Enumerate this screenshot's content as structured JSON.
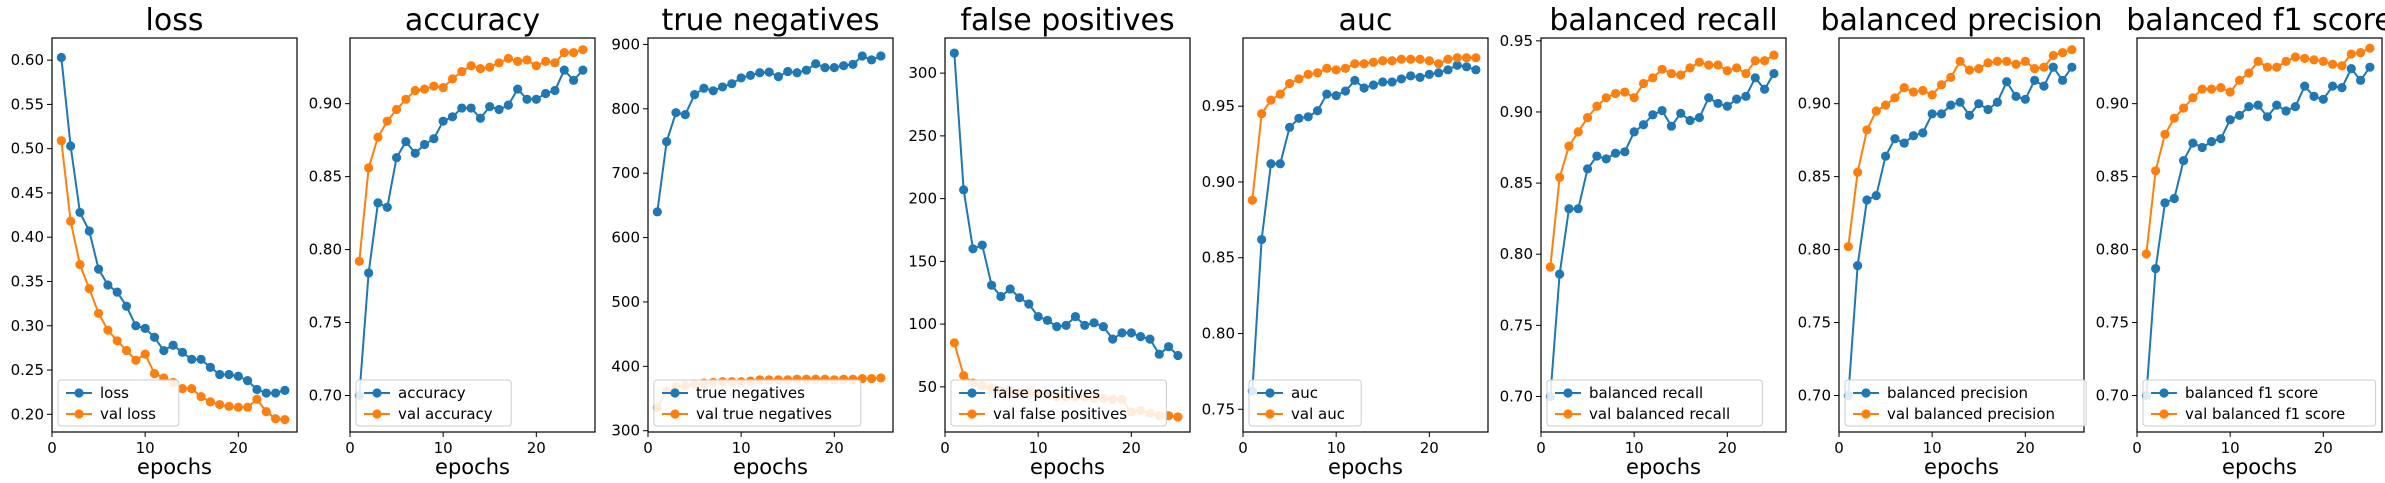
{
  "chart_data": [
    {
      "type": "line",
      "title": "loss",
      "xlabel": "epochs",
      "xlim": [
        0,
        26.3
      ],
      "ylim": [
        0.18,
        0.625
      ],
      "xticks": [
        0,
        10,
        20
      ],
      "yticks": [
        0.2,
        0.25,
        0.3,
        0.35,
        0.4,
        0.45,
        0.5,
        0.55,
        0.6
      ],
      "ytick_labels": [
        "0.20",
        "0.25",
        "0.30",
        "0.35",
        "0.40",
        "0.45",
        "0.50",
        "0.55",
        "0.60"
      ],
      "legend_position": "lower-left",
      "x": [
        1,
        2,
        3,
        4,
        5,
        6,
        7,
        8,
        9,
        10,
        11,
        12,
        13,
        14,
        15,
        16,
        17,
        18,
        19,
        20,
        21,
        22,
        23,
        24,
        25
      ],
      "series": [
        {
          "name": "loss",
          "color": "#1f77b4",
          "values": [
            0.603,
            0.503,
            0.428,
            0.407,
            0.364,
            0.346,
            0.338,
            0.322,
            0.3,
            0.297,
            0.287,
            0.272,
            0.278,
            0.27,
            0.262,
            0.262,
            0.253,
            0.245,
            0.245,
            0.243,
            0.238,
            0.228,
            0.224,
            0.224,
            0.227
          ]
        },
        {
          "name": "val loss",
          "color": "#ff7f0e",
          "values": [
            0.509,
            0.418,
            0.369,
            0.342,
            0.314,
            0.295,
            0.283,
            0.272,
            0.261,
            0.268,
            0.246,
            0.241,
            0.236,
            0.229,
            0.229,
            0.22,
            0.214,
            0.211,
            0.209,
            0.208,
            0.208,
            0.217,
            0.203,
            0.195,
            0.194
          ]
        }
      ]
    },
    {
      "type": "line",
      "title": "accuracy",
      "xlabel": "epochs",
      "xlim": [
        0,
        26.3
      ],
      "ylim": [
        0.675,
        0.945
      ],
      "xticks": [
        0,
        10,
        20
      ],
      "yticks": [
        0.7,
        0.75,
        0.8,
        0.85,
        0.9
      ],
      "ytick_labels": [
        "0.70",
        "0.75",
        "0.80",
        "0.85",
        "0.90"
      ],
      "legend_position": "lower-left",
      "x": [
        1,
        2,
        3,
        4,
        5,
        6,
        7,
        8,
        9,
        10,
        11,
        12,
        13,
        14,
        15,
        16,
        17,
        18,
        19,
        20,
        21,
        22,
        23,
        24,
        25
      ],
      "series": [
        {
          "name": "accuracy",
          "color": "#1f77b4",
          "values": [
            0.7,
            0.784,
            0.832,
            0.829,
            0.863,
            0.874,
            0.866,
            0.872,
            0.876,
            0.888,
            0.891,
            0.897,
            0.897,
            0.89,
            0.898,
            0.896,
            0.899,
            0.91,
            0.903,
            0.903,
            0.907,
            0.909,
            0.923,
            0.916,
            0.923
          ]
        },
        {
          "name": "val accuracy",
          "color": "#ff7f0e",
          "values": [
            0.792,
            0.856,
            0.877,
            0.888,
            0.896,
            0.903,
            0.909,
            0.91,
            0.912,
            0.911,
            0.917,
            0.922,
            0.926,
            0.924,
            0.925,
            0.928,
            0.931,
            0.929,
            0.93,
            0.926,
            0.929,
            0.928,
            0.935,
            0.935,
            0.937
          ]
        }
      ]
    },
    {
      "type": "line",
      "title": "true negatives",
      "xlabel": "epochs",
      "xlim": [
        0,
        26.3
      ],
      "ylim": [
        298,
        910
      ],
      "xticks": [
        0,
        10,
        20
      ],
      "yticks": [
        300,
        400,
        500,
        600,
        700,
        800,
        900
      ],
      "ytick_labels": [
        "300",
        "400",
        "500",
        "600",
        "700",
        "800",
        "900"
      ],
      "legend_position": "lower-left",
      "x": [
        1,
        2,
        3,
        4,
        5,
        6,
        7,
        8,
        9,
        10,
        11,
        12,
        13,
        14,
        15,
        16,
        17,
        18,
        19,
        20,
        21,
        22,
        23,
        24,
        25
      ],
      "series": [
        {
          "name": "true negatives",
          "color": "#1f77b4",
          "values": [
            640,
            749,
            794,
            791,
            822,
            832,
            828,
            834,
            839,
            848,
            852,
            856,
            857,
            850,
            858,
            856,
            860,
            870,
            864,
            864,
            867,
            869,
            882,
            876,
            882
          ]
        },
        {
          "name": "val true negatives",
          "color": "#ff7f0e",
          "values": [
            336,
            362,
            368,
            370,
            372,
            374,
            375,
            376,
            376,
            376,
            377,
            379,
            379,
            379,
            379,
            380,
            380,
            380,
            380,
            379,
            380,
            380,
            381,
            381,
            382
          ]
        }
      ]
    },
    {
      "type": "line",
      "title": "false positives",
      "xlabel": "epochs",
      "xlim": [
        0,
        26.3
      ],
      "ylim": [
        14,
        328
      ],
      "xticks": [
        0,
        10,
        20
      ],
      "yticks": [
        50,
        100,
        150,
        200,
        250,
        300
      ],
      "ytick_labels": [
        "50",
        "100",
        "150",
        "200",
        "250",
        "300"
      ],
      "legend_position": "lower-left",
      "x": [
        1,
        2,
        3,
        4,
        5,
        6,
        7,
        8,
        9,
        10,
        11,
        12,
        13,
        14,
        15,
        16,
        17,
        18,
        19,
        20,
        21,
        22,
        23,
        24,
        25
      ],
      "series": [
        {
          "name": "false positives",
          "color": "#1f77b4",
          "values": [
            316,
            207,
            160,
            163,
            131,
            122,
            128,
            121,
            116,
            106,
            103,
            98,
            99,
            106,
            99,
            101,
            98,
            88,
            93,
            93,
            90,
            88,
            76,
            82,
            75
          ]
        },
        {
          "name": "val false positives",
          "color": "#ff7f0e",
          "values": [
            85,
            59,
            53,
            51,
            49,
            47,
            46,
            45,
            45,
            45,
            44,
            42,
            42,
            42,
            42,
            41,
            41,
            40,
            40,
            30,
            31,
            29,
            27,
            27,
            26
          ]
        }
      ]
    },
    {
      "type": "line",
      "title": "auc",
      "xlabel": "epochs",
      "xlim": [
        0,
        26.3
      ],
      "ylim": [
        0.735,
        0.995
      ],
      "xticks": [
        0,
        10,
        20
      ],
      "yticks": [
        0.75,
        0.8,
        0.85,
        0.9,
        0.95
      ],
      "ytick_labels": [
        "0.75",
        "0.80",
        "0.85",
        "0.90",
        "0.95"
      ],
      "legend_position": "lower-left",
      "x": [
        1,
        2,
        3,
        4,
        5,
        6,
        7,
        8,
        9,
        10,
        11,
        12,
        13,
        14,
        15,
        16,
        17,
        18,
        19,
        20,
        21,
        22,
        23,
        24,
        25
      ],
      "series": [
        {
          "name": "auc",
          "color": "#1f77b4",
          "values": [
            0.762,
            0.862,
            0.912,
            0.912,
            0.936,
            0.942,
            0.943,
            0.947,
            0.958,
            0.957,
            0.96,
            0.967,
            0.962,
            0.964,
            0.966,
            0.966,
            0.968,
            0.97,
            0.969,
            0.971,
            0.972,
            0.974,
            0.977,
            0.976,
            0.974
          ]
        },
        {
          "name": "val auc",
          "color": "#ff7f0e",
          "values": [
            0.888,
            0.945,
            0.954,
            0.958,
            0.965,
            0.968,
            0.971,
            0.972,
            0.975,
            0.974,
            0.975,
            0.978,
            0.978,
            0.979,
            0.98,
            0.98,
            0.981,
            0.981,
            0.981,
            0.98,
            0.978,
            0.981,
            0.982,
            0.982,
            0.982
          ]
        }
      ]
    },
    {
      "type": "line",
      "title": "balanced recall",
      "xlabel": "epochs",
      "xlim": [
        0,
        26.3
      ],
      "ylim": [
        0.675,
        0.952
      ],
      "xticks": [
        0,
        10,
        20
      ],
      "yticks": [
        0.7,
        0.75,
        0.8,
        0.85,
        0.9,
        0.95
      ],
      "ytick_labels": [
        "0.70",
        "0.75",
        "0.80",
        "0.85",
        "0.90",
        "0.95"
      ],
      "legend_position": "lower-left",
      "x": [
        1,
        2,
        3,
        4,
        5,
        6,
        7,
        8,
        9,
        10,
        11,
        12,
        13,
        14,
        15,
        16,
        17,
        18,
        19,
        20,
        21,
        22,
        23,
        24,
        25
      ],
      "series": [
        {
          "name": "balanced recall",
          "color": "#1f77b4",
          "values": [
            0.7,
            0.786,
            0.832,
            0.832,
            0.86,
            0.869,
            0.867,
            0.871,
            0.872,
            0.886,
            0.891,
            0.898,
            0.901,
            0.89,
            0.899,
            0.894,
            0.896,
            0.91,
            0.906,
            0.904,
            0.909,
            0.911,
            0.924,
            0.916,
            0.927
          ]
        },
        {
          "name": "val balanced recall",
          "color": "#ff7f0e",
          "values": [
            0.791,
            0.854,
            0.876,
            0.886,
            0.896,
            0.904,
            0.91,
            0.913,
            0.914,
            0.91,
            0.92,
            0.924,
            0.93,
            0.927,
            0.926,
            0.931,
            0.935,
            0.933,
            0.933,
            0.929,
            0.931,
            0.927,
            0.936,
            0.936,
            0.94
          ]
        }
      ]
    },
    {
      "type": "line",
      "title": "balanced precision",
      "xlabel": "epochs",
      "xlim": [
        0,
        26.3
      ],
      "ylim": [
        0.675,
        0.945
      ],
      "xticks": [
        0,
        10,
        20
      ],
      "yticks": [
        0.7,
        0.75,
        0.8,
        0.85,
        0.9
      ],
      "ytick_labels": [
        "0.70",
        "0.75",
        "0.80",
        "0.85",
        "0.90"
      ],
      "legend_position": "lower-left",
      "x": [
        1,
        2,
        3,
        4,
        5,
        6,
        7,
        8,
        9,
        10,
        11,
        12,
        13,
        14,
        15,
        16,
        17,
        18,
        19,
        20,
        21,
        22,
        23,
        24,
        25
      ],
      "series": [
        {
          "name": "balanced precision",
          "color": "#1f77b4",
          "values": [
            0.7,
            0.789,
            0.834,
            0.837,
            0.864,
            0.876,
            0.873,
            0.878,
            0.88,
            0.893,
            0.893,
            0.899,
            0.901,
            0.892,
            0.9,
            0.896,
            0.901,
            0.915,
            0.905,
            0.903,
            0.916,
            0.912,
            0.925,
            0.916,
            0.925
          ]
        },
        {
          "name": "val balanced precision",
          "color": "#ff7f0e",
          "values": [
            0.802,
            0.853,
            0.882,
            0.895,
            0.899,
            0.904,
            0.911,
            0.908,
            0.909,
            0.906,
            0.913,
            0.918,
            0.929,
            0.923,
            0.924,
            0.928,
            0.929,
            0.929,
            0.927,
            0.929,
            0.924,
            0.925,
            0.933,
            0.935,
            0.937
          ]
        }
      ]
    },
    {
      "type": "line",
      "title": "balanced f1 score",
      "xlabel": "epochs",
      "xlim": [
        0,
        26.3
      ],
      "ylim": [
        0.675,
        0.945
      ],
      "xticks": [
        0,
        10,
        20
      ],
      "yticks": [
        0.7,
        0.75,
        0.8,
        0.85,
        0.9
      ],
      "ytick_labels": [
        "0.70",
        "0.75",
        "0.80",
        "0.85",
        "0.90"
      ],
      "legend_position": "lower-left",
      "x": [
        1,
        2,
        3,
        4,
        5,
        6,
        7,
        8,
        9,
        10,
        11,
        12,
        13,
        14,
        15,
        16,
        17,
        18,
        19,
        20,
        21,
        22,
        23,
        24,
        25
      ],
      "series": [
        {
          "name": "balanced f1 score",
          "color": "#1f77b4",
          "values": [
            0.7,
            0.787,
            0.832,
            0.835,
            0.861,
            0.873,
            0.87,
            0.874,
            0.876,
            0.889,
            0.892,
            0.898,
            0.899,
            0.891,
            0.899,
            0.895,
            0.898,
            0.912,
            0.905,
            0.903,
            0.912,
            0.911,
            0.924,
            0.916,
            0.925
          ]
        },
        {
          "name": "val balanced f1 score",
          "color": "#ff7f0e",
          "values": [
            0.797,
            0.854,
            0.879,
            0.89,
            0.897,
            0.904,
            0.91,
            0.91,
            0.911,
            0.908,
            0.916,
            0.921,
            0.929,
            0.925,
            0.925,
            0.929,
            0.932,
            0.931,
            0.93,
            0.929,
            0.927,
            0.926,
            0.934,
            0.935,
            0.938
          ]
        }
      ]
    }
  ]
}
